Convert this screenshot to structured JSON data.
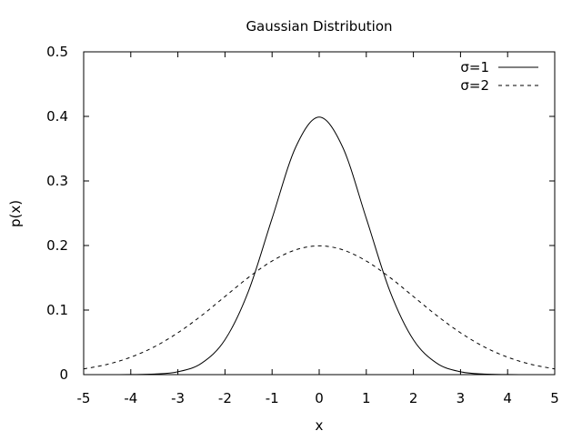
{
  "chart_data": {
    "type": "line",
    "title": "Gaussian Distribution",
    "xlabel": "x",
    "ylabel": "p(x)",
    "xlim": [
      -5,
      5
    ],
    "ylim": [
      0,
      0.5
    ],
    "xticks": [
      -5,
      -4,
      -3,
      -2,
      -1,
      0,
      1,
      2,
      3,
      4,
      5
    ],
    "yticks": [
      0,
      0.1,
      0.2,
      0.3,
      0.4,
      0.5
    ],
    "ytick_labels": [
      "0",
      "0.1",
      "0.2",
      "0.3",
      "0.4",
      "0.5"
    ],
    "grid": false,
    "legend_position": "top-right",
    "series": [
      {
        "name": "σ=1",
        "style": "solid",
        "color": "#000000",
        "x": [
          -5,
          -4.5,
          -4,
          -3.5,
          -3,
          -2.5,
          -2,
          -1.5,
          -1,
          -0.5,
          0,
          0.5,
          1,
          1.5,
          2,
          2.5,
          3,
          3.5,
          4,
          4.5,
          5
        ],
        "y": [
          1.5e-06,
          1.6e-05,
          0.000134,
          0.000873,
          0.00443,
          0.0175,
          0.054,
          0.1295,
          0.242,
          0.3521,
          0.3989,
          0.3521,
          0.242,
          0.1295,
          0.054,
          0.0175,
          0.00443,
          0.000873,
          0.000134,
          1.6e-05,
          1.5e-06
        ]
      },
      {
        "name": "σ=2",
        "style": "dashed",
        "color": "#000000",
        "x": [
          -5,
          -4.5,
          -4,
          -3.5,
          -3,
          -2.5,
          -2,
          -1.5,
          -1,
          -0.5,
          0,
          0.5,
          1,
          1.5,
          2,
          2.5,
          3,
          3.5,
          4,
          4.5,
          5
        ],
        "y": [
          0.0088,
          0.0159,
          0.027,
          0.0431,
          0.0648,
          0.0913,
          0.121,
          0.1506,
          0.176,
          0.1933,
          0.1995,
          0.1933,
          0.176,
          0.1506,
          0.121,
          0.0913,
          0.0648,
          0.0431,
          0.027,
          0.0159,
          0.0088
        ]
      }
    ]
  }
}
